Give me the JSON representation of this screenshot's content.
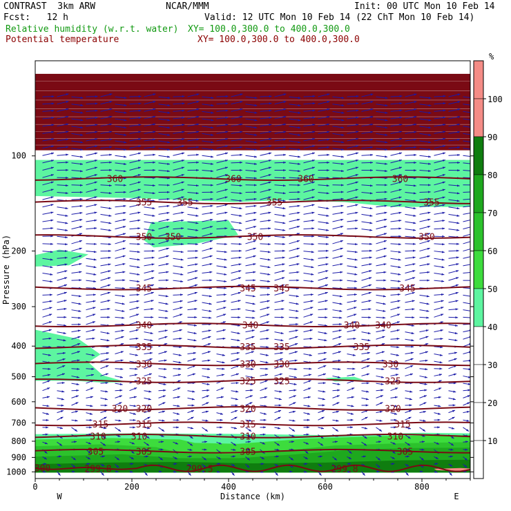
{
  "header": {
    "model": "CONTRAST  3km ARW",
    "org": "NCAR/MMM",
    "init": "Init: 00 UTC Mon 10 Feb 14",
    "fcst": "Fcst:   12 h",
    "valid": "Valid: 12 UTC Mon 10 Feb 14 (22 ChT Mon 10 Feb 14)",
    "field1_name": "Relative humidity (w.r.t. water)",
    "field1_xy": "XY= 100.0,300.0 to 400.0,300.0",
    "field2_name": "Potential temperature",
    "field2_xy": "XY= 100.0,300.0 to 400.0,300.0"
  },
  "colors": {
    "rh_50": "#5df5a0",
    "rh_60": "#3ddc3d",
    "rh_70": "#2cc22c",
    "rh_80": "#1ea81e",
    "rh_90": "#0f7d0f",
    "rh_100": "#f48c86",
    "theta_line": "#7a0a14",
    "wind_arrow": "#1a1aa8",
    "header_green": "#119911",
    "header_red": "#8b0000"
  },
  "chart_data": {
    "type": "contour",
    "xlabel": "Distance (km)",
    "ylabel": "Pressure (hPa)",
    "xlim": [
      0,
      900
    ],
    "ylim": [
      1050,
      50
    ],
    "y_scale": "log-pressure",
    "x_ticks": [
      0,
      200,
      400,
      600,
      800
    ],
    "y_ticks": [
      100,
      200,
      300,
      400,
      500,
      600,
      700,
      800,
      900,
      1000
    ],
    "x_end_labels": {
      "left": "W",
      "right": "E"
    },
    "colorbar": {
      "unit": "%",
      "levels": [
        10,
        20,
        30,
        40,
        50,
        60,
        70,
        80,
        90,
        100
      ],
      "tick_labels": [
        "10",
        "20",
        "30",
        "40",
        "50",
        "60",
        "70",
        "80",
        "90",
        "100"
      ]
    },
    "theta_contours": [
      {
        "value": 360,
        "p": 118,
        "labels": [
          {
            "x": 165,
            "t": "360"
          },
          {
            "x": 410,
            "t": "360"
          },
          {
            "x": 560,
            "t": "360"
          },
          {
            "x": 755,
            "t": "360"
          }
        ]
      },
      {
        "value": 355,
        "p": 140,
        "labels": [
          {
            "x": 225,
            "t": "355"
          },
          {
            "x": 310,
            "t": "355"
          },
          {
            "x": 495,
            "t": "355"
          },
          {
            "x": 820,
            "t": "355"
          }
        ]
      },
      {
        "value": 350,
        "p": 180,
        "labels": [
          {
            "x": 225,
            "t": "350"
          },
          {
            "x": 285,
            "t": "350"
          },
          {
            "x": 455,
            "t": "350"
          },
          {
            "x": 810,
            "t": "350"
          }
        ]
      },
      {
        "value": 345,
        "p": 262,
        "labels": [
          {
            "x": 225,
            "t": "345"
          },
          {
            "x": 440,
            "t": "345"
          },
          {
            "x": 510,
            "t": "345"
          },
          {
            "x": 770,
            "t": "345"
          }
        ]
      },
      {
        "value": 340,
        "p": 343,
        "labels": [
          {
            "x": 225,
            "t": "340"
          },
          {
            "x": 445,
            "t": "340"
          },
          {
            "x": 655,
            "t": "340"
          },
          {
            "x": 720,
            "t": "340"
          }
        ]
      },
      {
        "value": 335,
        "p": 402,
        "labels": [
          {
            "x": 225,
            "t": "335"
          },
          {
            "x": 440,
            "t": "335"
          },
          {
            "x": 510,
            "t": "335"
          },
          {
            "x": 675,
            "t": "335"
          }
        ]
      },
      {
        "value": 330,
        "p": 455,
        "labels": [
          {
            "x": 225,
            "t": "330"
          },
          {
            "x": 440,
            "t": "330"
          },
          {
            "x": 510,
            "t": "330"
          },
          {
            "x": 735,
            "t": "330"
          }
        ]
      },
      {
        "value": 325,
        "p": 515,
        "labels": [
          {
            "x": 225,
            "t": "325"
          },
          {
            "x": 440,
            "t": "325"
          },
          {
            "x": 510,
            "t": "325"
          },
          {
            "x": 740,
            "t": "325"
          }
        ]
      },
      {
        "value": 320,
        "p": 630,
        "labels": [
          {
            "x": 175,
            "t": "320"
          },
          {
            "x": 225,
            "t": "320"
          },
          {
            "x": 440,
            "t": "320"
          },
          {
            "x": 740,
            "t": "320"
          }
        ]
      },
      {
        "value": 315,
        "p": 705,
        "labels": [
          {
            "x": 135,
            "t": "315"
          },
          {
            "x": 225,
            "t": "315"
          },
          {
            "x": 440,
            "t": "315"
          },
          {
            "x": 760,
            "t": "315"
          }
        ]
      },
      {
        "value": 310,
        "p": 770,
        "labels": [
          {
            "x": 130,
            "t": "310"
          },
          {
            "x": 215,
            "t": "310"
          },
          {
            "x": 440,
            "t": "310"
          },
          {
            "x": 745,
            "t": "310"
          }
        ]
      },
      {
        "value": 305,
        "p": 860,
        "labels": [
          {
            "x": 125,
            "t": "305"
          },
          {
            "x": 225,
            "t": "305"
          },
          {
            "x": 440,
            "t": "305"
          },
          {
            "x": 765,
            "t": "305"
          }
        ]
      }
    ],
    "surface_labels": [
      {
        "x": 15,
        "p": 970,
        "t": "300"
      },
      {
        "x": 130,
        "p": 975,
        "t": "299.8"
      },
      {
        "x": 340,
        "p": 975,
        "t": "299.5"
      },
      {
        "x": 640,
        "p": 975,
        "t": "299.8"
      }
    ],
    "rh_regions": [
      {
        "level": 50,
        "poly": [
          [
            0,
            103
          ],
          [
            900,
            103
          ],
          [
            900,
            145
          ],
          [
            740,
            145
          ],
          [
            640,
            140
          ],
          [
            520,
            138
          ],
          [
            410,
            140
          ],
          [
            300,
            138
          ],
          [
            200,
            136
          ],
          [
            100,
            135
          ],
          [
            0,
            134
          ]
        ]
      },
      {
        "level": 50,
        "poly": [
          [
            240,
            162
          ],
          [
            400,
            160
          ],
          [
            420,
            178
          ],
          [
            330,
            190
          ],
          [
            245,
            195
          ],
          [
            225,
            185
          ]
        ]
      },
      {
        "level": 50,
        "poly": [
          [
            0,
            206
          ],
          [
            50,
            198
          ],
          [
            110,
            205
          ],
          [
            70,
            222
          ],
          [
            0,
            224
          ]
        ]
      },
      {
        "level": 50,
        "poly": [
          [
            0,
            355
          ],
          [
            90,
            380
          ],
          [
            135,
            425
          ],
          [
            110,
            450
          ],
          [
            140,
            495
          ],
          [
            190,
            520
          ],
          [
            140,
            522
          ],
          [
            80,
            515
          ],
          [
            0,
            515
          ]
        ]
      },
      {
        "level": 50,
        "poly": [
          [
            600,
            505
          ],
          [
            660,
            500
          ],
          [
            680,
            512
          ],
          [
            620,
            518
          ]
        ]
      },
      {
        "level": 50,
        "poly": [
          [
            0,
            760
          ],
          [
            200,
            755
          ],
          [
            400,
            758
          ],
          [
            600,
            765
          ],
          [
            800,
            752
          ],
          [
            900,
            755
          ],
          [
            900,
            1005
          ],
          [
            0,
            1005
          ]
        ]
      },
      {
        "level": 60,
        "poly": [
          [
            0,
            790
          ],
          [
            160,
            782
          ],
          [
            300,
            790
          ],
          [
            330,
            810
          ],
          [
            420,
            815
          ],
          [
            560,
            785
          ],
          [
            720,
            770
          ],
          [
            900,
            765
          ],
          [
            900,
            1005
          ],
          [
            0,
            1005
          ]
        ]
      },
      {
        "level": 70,
        "poly": [
          [
            0,
            830
          ],
          [
            140,
            818
          ],
          [
            250,
            835
          ],
          [
            300,
            870
          ],
          [
            410,
            880
          ],
          [
            520,
            855
          ],
          [
            620,
            825
          ],
          [
            760,
            812
          ],
          [
            900,
            805
          ],
          [
            900,
            1005
          ],
          [
            0,
            1005
          ]
        ]
      },
      {
        "level": 80,
        "poly": [
          [
            0,
            895
          ],
          [
            180,
            880
          ],
          [
            300,
            905
          ],
          [
            420,
            905
          ],
          [
            540,
            880
          ],
          [
            660,
            850
          ],
          [
            780,
            840
          ],
          [
            900,
            838
          ],
          [
            900,
            1005
          ],
          [
            0,
            1005
          ]
        ]
      },
      {
        "level": 90,
        "poly": [
          [
            0,
            945
          ],
          [
            150,
            935
          ],
          [
            300,
            930
          ],
          [
            450,
            940
          ],
          [
            600,
            935
          ],
          [
            750,
            920
          ],
          [
            900,
            915
          ],
          [
            900,
            1005
          ],
          [
            0,
            1005
          ]
        ]
      },
      {
        "level": 100,
        "poly": [
          [
            825,
            978
          ],
          [
            880,
            972
          ],
          [
            900,
            976
          ],
          [
            900,
            990
          ],
          [
            860,
            993
          ],
          [
            830,
            988
          ]
        ]
      }
    ]
  }
}
